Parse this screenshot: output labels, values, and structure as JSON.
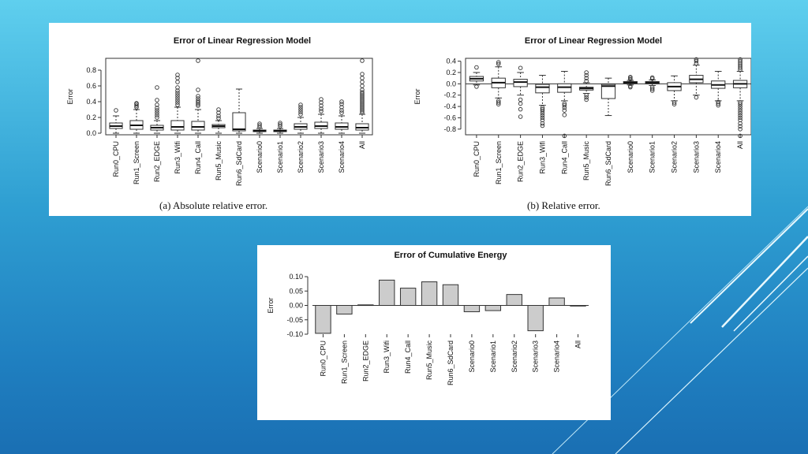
{
  "chart_data": [
    {
      "type": "box",
      "title": "Error of Linear Regression Model",
      "ylabel": "Error",
      "ylim": [
        -0.02,
        0.95
      ],
      "yticks": [
        "0.0",
        "0.2",
        "0.4",
        "0.6",
        "0.8"
      ],
      "ytick_values": [
        0,
        0.2,
        0.4,
        0.6,
        0.8
      ],
      "caption": "(a) Absolute relative error.",
      "categories": [
        "Run0_CPU",
        "Run1_Screen",
        "Run2_EDGE",
        "Run3_Wifi",
        "Run4_Call",
        "Run5_Music",
        "Run6_SdCard",
        "Scenario0",
        "Scenario1",
        "Scenario2",
        "Scenario3",
        "Scenario4",
        "All"
      ],
      "boxes": [
        {
          "min": 0.0,
          "q1": 0.06,
          "median": 0.09,
          "q3": 0.13,
          "max": 0.22,
          "outliers": [
            0.29
          ]
        },
        {
          "min": 0.0,
          "q1": 0.05,
          "median": 0.1,
          "q3": 0.16,
          "max": 0.3,
          "outliers": [
            0.33,
            0.35,
            0.37,
            0.38
          ]
        },
        {
          "min": 0.0,
          "q1": 0.04,
          "median": 0.07,
          "q3": 0.1,
          "max": 0.16,
          "outliers": [
            0.2,
            0.23,
            0.26,
            0.29,
            0.32,
            0.36,
            0.42,
            0.58
          ]
        },
        {
          "min": 0.0,
          "q1": 0.04,
          "median": 0.08,
          "q3": 0.16,
          "max": 0.33,
          "outliers": [
            0.36,
            0.39,
            0.42,
            0.45,
            0.48,
            0.51,
            0.54,
            0.58,
            0.65,
            0.7,
            0.74
          ]
        },
        {
          "min": 0.0,
          "q1": 0.04,
          "median": 0.08,
          "q3": 0.15,
          "max": 0.3,
          "outliers": [
            0.35,
            0.37,
            0.39,
            0.41,
            0.44,
            0.47,
            0.55,
            0.92
          ]
        },
        {
          "min": 0.0,
          "q1": 0.07,
          "median": 0.09,
          "q3": 0.11,
          "max": 0.16,
          "outliers": [
            0.19,
            0.22,
            0.26,
            0.3
          ]
        },
        {
          "min": 0.0,
          "q1": 0.03,
          "median": 0.05,
          "q3": 0.26,
          "max": 0.56,
          "outliers": []
        },
        {
          "min": 0.0,
          "q1": 0.02,
          "median": 0.03,
          "q3": 0.04,
          "max": 0.06,
          "outliers": [
            0.08,
            0.1,
            0.12
          ]
        },
        {
          "min": 0.0,
          "q1": 0.02,
          "median": 0.03,
          "q3": 0.04,
          "max": 0.06,
          "outliers": [
            0.09,
            0.11,
            0.13
          ]
        },
        {
          "min": 0.0,
          "q1": 0.05,
          "median": 0.08,
          "q3": 0.12,
          "max": 0.2,
          "outliers": [
            0.24,
            0.27,
            0.3,
            0.33,
            0.36
          ]
        },
        {
          "min": 0.0,
          "q1": 0.06,
          "median": 0.09,
          "q3": 0.14,
          "max": 0.24,
          "outliers": [
            0.28,
            0.31,
            0.35,
            0.39,
            0.43
          ]
        },
        {
          "min": 0.0,
          "q1": 0.05,
          "median": 0.08,
          "q3": 0.13,
          "max": 0.22,
          "outliers": [
            0.26,
            0.29,
            0.33,
            0.37,
            0.4
          ]
        },
        {
          "min": 0.0,
          "q1": 0.04,
          "median": 0.07,
          "q3": 0.12,
          "max": 0.24,
          "outliers": [
            0.26,
            0.28,
            0.3,
            0.32,
            0.34,
            0.36,
            0.38,
            0.4,
            0.42,
            0.44,
            0.46,
            0.48,
            0.5,
            0.52,
            0.55,
            0.6,
            0.65,
            0.7,
            0.75,
            0.92
          ]
        }
      ]
    },
    {
      "type": "box",
      "title": "Error of Linear Regression Model",
      "ylabel": "Error",
      "ylim": [
        -0.9,
        0.45
      ],
      "yticks": [
        "0.4",
        "0.2",
        "0.0",
        "-0.2",
        "-0.4",
        "-0.6",
        "-0.8"
      ],
      "ytick_values": [
        0.4,
        0.2,
        0.0,
        -0.2,
        -0.4,
        -0.6,
        -0.8
      ],
      "reference_line": 0.0,
      "caption": "(b) Relative error.",
      "categories": [
        "Run0_CPU",
        "Run1_Screen",
        "Run2_EDGE",
        "Run3_Wifi",
        "Run4_Call",
        "Run5_Music",
        "Run6_SdCard",
        "Scenario0",
        "Scenario1",
        "Scenario2",
        "Scenario3",
        "Scenario4",
        "All"
      ],
      "boxes": [
        {
          "min": -0.02,
          "q1": 0.05,
          "median": 0.09,
          "q3": 0.13,
          "max": 0.2,
          "outliers": [
            0.29,
            -0.05
          ]
        },
        {
          "min": -0.25,
          "q1": -0.07,
          "median": 0.02,
          "q3": 0.1,
          "max": 0.3,
          "outliers": [
            0.35,
            0.38,
            -0.3,
            -0.33,
            -0.36
          ]
        },
        {
          "min": -0.2,
          "q1": -0.05,
          "median": 0.03,
          "q3": 0.08,
          "max": 0.2,
          "outliers": [
            0.28,
            -0.28,
            -0.35,
            -0.45,
            -0.58
          ]
        },
        {
          "min": -0.38,
          "q1": -0.16,
          "median": -0.06,
          "q3": -0.01,
          "max": 0.15,
          "outliers": [
            -0.42,
            -0.45,
            -0.48,
            -0.52,
            -0.56,
            -0.6,
            -0.64,
            -0.7,
            -0.74
          ]
        },
        {
          "min": -0.3,
          "q1": -0.15,
          "median": -0.06,
          "q3": 0.0,
          "max": 0.22,
          "outliers": [
            -0.35,
            -0.38,
            -0.42,
            -0.47,
            -0.55,
            -0.92
          ]
        },
        {
          "min": -0.17,
          "q1": -0.11,
          "median": -0.08,
          "q3": -0.06,
          "max": 0.02,
          "outliers": [
            0.05,
            0.1,
            0.15,
            0.2,
            -0.2,
            -0.24,
            -0.28
          ]
        },
        {
          "min": -0.56,
          "q1": -0.26,
          "median": -0.04,
          "q3": -0.01,
          "max": 0.1,
          "outliers": []
        },
        {
          "min": -0.02,
          "q1": 0.01,
          "median": 0.02,
          "q3": 0.04,
          "max": 0.06,
          "outliers": [
            0.08,
            0.1,
            0.12,
            -0.04,
            -0.06
          ]
        },
        {
          "min": -0.03,
          "q1": 0.0,
          "median": 0.02,
          "q3": 0.04,
          "max": 0.07,
          "outliers": [
            0.09,
            0.11,
            -0.06,
            -0.09,
            -0.12
          ]
        },
        {
          "min": -0.3,
          "q1": -0.12,
          "median": -0.05,
          "q3": 0.02,
          "max": 0.14,
          "outliers": [
            -0.33,
            -0.36
          ]
        },
        {
          "min": -0.2,
          "q1": 0.02,
          "median": 0.08,
          "q3": 0.15,
          "max": 0.33,
          "outliers": [
            0.36,
            0.4,
            0.43,
            -0.24
          ]
        },
        {
          "min": -0.3,
          "q1": -0.08,
          "median": -0.02,
          "q3": 0.05,
          "max": 0.22,
          "outliers": [
            -0.32,
            -0.35,
            -0.38
          ]
        },
        {
          "min": -0.3,
          "q1": -0.07,
          "median": 0.0,
          "q3": 0.06,
          "max": 0.22,
          "outliers": [
            0.25,
            0.28,
            0.31,
            0.34,
            0.37,
            0.4,
            0.43,
            -0.33,
            -0.36,
            -0.4,
            -0.44,
            -0.48,
            -0.52,
            -0.56,
            -0.6,
            -0.64,
            -0.7,
            -0.75,
            -0.8,
            -0.92
          ]
        }
      ]
    },
    {
      "type": "bar",
      "title": "Error of Cumulative Energy",
      "ylabel": "Error",
      "ylim": [
        -0.1,
        0.1
      ],
      "yticks": [
        "0.10",
        "0.05",
        "0.00",
        "-0.05",
        "-0.10"
      ],
      "ytick_values": [
        0.1,
        0.05,
        0.0,
        -0.05,
        -0.1
      ],
      "bar_color": "#cccccc",
      "categories": [
        "Run0_CPU",
        "Run1_Screen",
        "Run2_EDGE",
        "Run3_Wifi",
        "Run4_Call",
        "Run5_Music",
        "Run6_SdCard",
        "Scenario0",
        "Scenario1",
        "Scenario2",
        "Scenario3",
        "Scenario4",
        "All"
      ],
      "values": [
        -0.097,
        -0.03,
        0.002,
        0.088,
        0.06,
        0.082,
        0.072,
        -0.022,
        -0.018,
        0.038,
        -0.088,
        0.026,
        -0.001
      ]
    }
  ]
}
